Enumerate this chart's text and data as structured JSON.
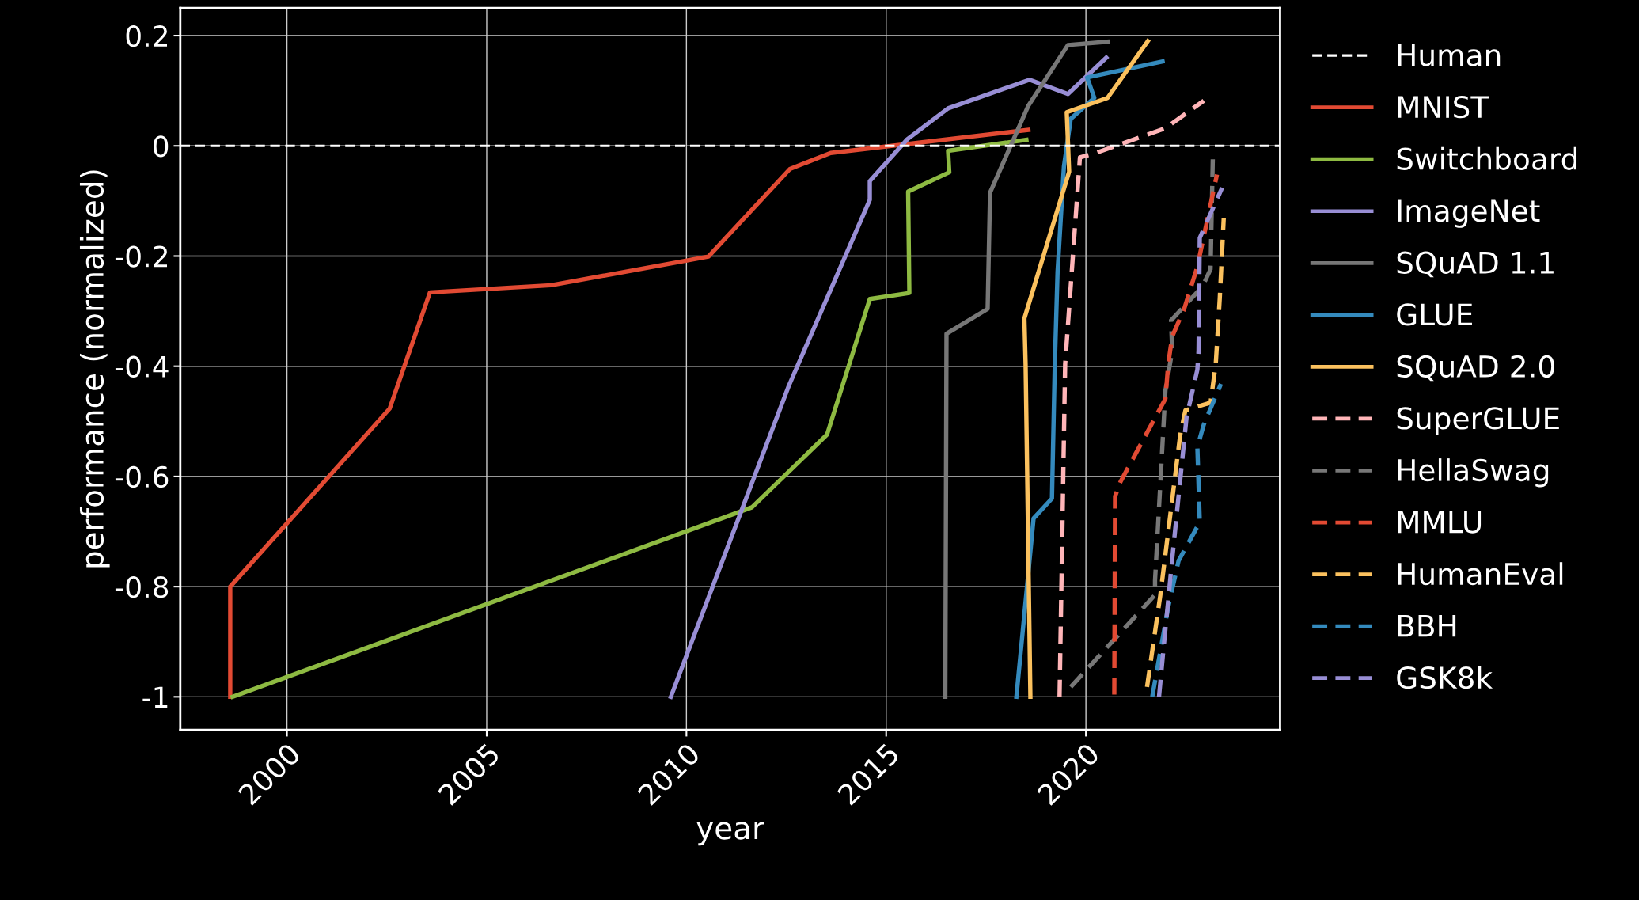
{
  "chart_data": {
    "type": "line",
    "xlabel": "year",
    "ylabel": "performance (normalized)",
    "xlim": [
      1997.33,
      2024.86
    ],
    "ylim": [
      -1.06,
      0.25
    ],
    "xticks": [
      2000,
      2005,
      2010,
      2015,
      2020
    ],
    "yticks": [
      {
        "value": -1,
        "label": "-1"
      },
      {
        "value": -0.8,
        "label": "-0.8"
      },
      {
        "value": -0.6,
        "label": "-0.6"
      },
      {
        "value": -0.4,
        "label": "-0.4"
      },
      {
        "value": -0.2,
        "label": "-0.2"
      },
      {
        "value": 0,
        "label": "0"
      },
      {
        "value": 0.2,
        "label": "0.2"
      }
    ],
    "grid": true,
    "legend": "right",
    "ref_lines": [
      {
        "axis": "y",
        "value": 0,
        "label": "Human",
        "color": "#ffffff",
        "line_style": "dashed"
      }
    ],
    "series": [
      {
        "name": "MNIST",
        "color": "#e24a33",
        "line_style": "solid",
        "x": [
          1998.58,
          1998.58,
          2002.57,
          2003.58,
          2006.61,
          2010.55,
          2012.59,
          2013.61,
          2018.56
        ],
        "values": [
          -1.0,
          -0.8,
          -0.477,
          -0.266,
          -0.253,
          -0.201,
          -0.042,
          -0.013,
          0.029
        ]
      },
      {
        "name": "Switchboard",
        "color": "#8eba42",
        "line_style": "solid",
        "x": [
          1998.64,
          2011.64,
          2013.52,
          2014.59,
          2015.58,
          2015.55,
          2016.58,
          2016.55,
          2018.51
        ],
        "values": [
          -1.0,
          -0.656,
          -0.524,
          -0.278,
          -0.267,
          -0.083,
          -0.048,
          -0.009,
          0.011
        ]
      },
      {
        "name": "ImageNet",
        "color": "#988ed5",
        "line_style": "solid",
        "x": [
          2009.61,
          2012.56,
          2014.59,
          2014.59,
          2015.53,
          2016.55,
          2018.59,
          2019.55,
          2020.51
        ],
        "values": [
          -1.0,
          -0.436,
          -0.098,
          -0.064,
          0.012,
          0.068,
          0.12,
          0.094,
          0.16
        ]
      },
      {
        "name": "SQuAD 1.1",
        "color": "#777777",
        "line_style": "solid",
        "x": [
          2016.48,
          2016.51,
          2017.54,
          2017.6,
          2018.56,
          2019.55,
          2020.54
        ],
        "values": [
          -1.0,
          -0.341,
          -0.296,
          -0.085,
          0.073,
          0.183,
          0.189
        ]
      },
      {
        "name": "GLUE",
        "color": "#348abd",
        "line_style": "solid",
        "x": [
          2018.26,
          2018.69,
          2019.15,
          2019.22,
          2019.29,
          2019.45,
          2019.62,
          2020.21,
          2020.03,
          2021.92
        ],
        "values": [
          -1.0,
          -0.676,
          -0.64,
          -0.4,
          -0.229,
          -0.037,
          0.049,
          0.087,
          0.124,
          0.153
        ]
      },
      {
        "name": "SQuAD 2.0",
        "color": "#fbc15e",
        "line_style": "solid",
        "x": [
          2018.61,
          2018.49,
          2018.46,
          2019.58,
          2019.52,
          2020.54,
          2021.55
        ],
        "values": [
          -1.0,
          -0.396,
          -0.313,
          -0.047,
          0.061,
          0.087,
          0.19
        ]
      },
      {
        "name": "SuperGLUE",
        "color": "#ffb5b8",
        "line_style": "dashed",
        "x": [
          2019.34,
          2019.48,
          2019.85,
          2020.24,
          2021.99,
          2022.95
        ],
        "values": [
          -1.0,
          -0.396,
          -0.021,
          -0.013,
          0.032,
          0.082
        ]
      },
      {
        "name": "HellaSwag",
        "color": "#777777",
        "line_style": "dashed",
        "x": [
          2019.62,
          2021.73,
          2021.73,
          2021.99,
          2022.16,
          2022.13,
          2022.92,
          2023.12,
          2023.18
        ],
        "values": [
          -0.982,
          -0.815,
          -0.789,
          -0.444,
          -0.372,
          -0.317,
          -0.255,
          -0.224,
          -0.009
        ]
      },
      {
        "name": "MMLU",
        "color": "#e24a33",
        "line_style": "dashed",
        "x": [
          2020.71,
          2020.73,
          2020.87,
          2021.99,
          2022.06,
          2022.16,
          2022.46,
          2022.79,
          2023.28
        ],
        "values": [
          -0.996,
          -0.636,
          -0.609,
          -0.459,
          -0.396,
          -0.346,
          -0.296,
          -0.219,
          -0.052
        ]
      },
      {
        "name": "HumanEval",
        "color": "#fbc15e",
        "line_style": "dashed",
        "x": [
          2021.53,
          2021.86,
          2022.36,
          2022.49,
          2023.12,
          2023.25,
          2023.35,
          2023.45
        ],
        "values": [
          -0.982,
          -0.817,
          -0.525,
          -0.48,
          -0.466,
          -0.396,
          -0.277,
          -0.131
        ]
      },
      {
        "name": "BBH",
        "color": "#348abd",
        "line_style": "dashed",
        "x": [
          2021.66,
          2022.06,
          2022.32,
          2022.85,
          2022.79,
          2022.95,
          2023.38
        ],
        "values": [
          -1.0,
          -0.837,
          -0.753,
          -0.683,
          -0.547,
          -0.506,
          -0.432
        ]
      },
      {
        "name": "GSK8k",
        "color": "#988ed5",
        "line_style": "dashed",
        "x": [
          2021.83,
          2021.93,
          2022.16,
          2022.52,
          2022.79,
          2022.82,
          2022.85,
          2023.41
        ],
        "values": [
          -1.0,
          -0.922,
          -0.75,
          -0.492,
          -0.406,
          -0.372,
          -0.167,
          -0.076
        ]
      }
    ]
  }
}
